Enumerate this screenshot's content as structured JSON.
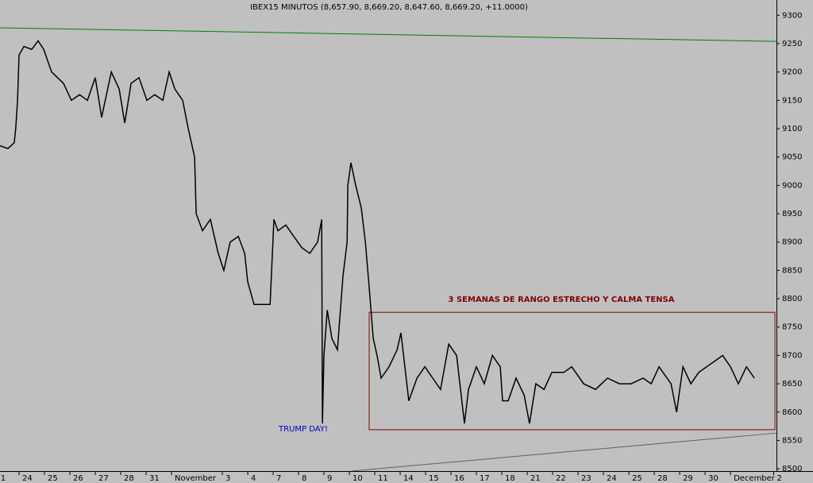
{
  "chart_data": {
    "type": "line",
    "title": "IBEX15 MINUTOS (8,657.90, 8,669.20, 8,647.60, 8,669.20, +11.0000)",
    "xlim": [
      -0.75,
      29.81
    ],
    "ylim": [
      8496,
      9327
    ],
    "xticks": [
      {
        "value": -0.85,
        "label": "1"
      },
      {
        "value": 0,
        "label": "24"
      },
      {
        "value": 1,
        "label": "25"
      },
      {
        "value": 2,
        "label": "26"
      },
      {
        "value": 3,
        "label": "27"
      },
      {
        "value": 4,
        "label": "28"
      },
      {
        "value": 5,
        "label": "31"
      },
      {
        "value": 6,
        "label": "November"
      },
      {
        "value": 8,
        "label": "3"
      },
      {
        "value": 9,
        "label": "4"
      },
      {
        "value": 10,
        "label": "7"
      },
      {
        "value": 11,
        "label": "8"
      },
      {
        "value": 12,
        "label": "9"
      },
      {
        "value": 13,
        "label": "10"
      },
      {
        "value": 14,
        "label": "11"
      },
      {
        "value": 15,
        "label": "14"
      },
      {
        "value": 16,
        "label": "15"
      },
      {
        "value": 17,
        "label": "16"
      },
      {
        "value": 18,
        "label": "17"
      },
      {
        "value": 19,
        "label": "18"
      },
      {
        "value": 20,
        "label": "21"
      },
      {
        "value": 21,
        "label": "22"
      },
      {
        "value": 22,
        "label": "23"
      },
      {
        "value": 23,
        "label": "24"
      },
      {
        "value": 24,
        "label": "25"
      },
      {
        "value": 25,
        "label": "28"
      },
      {
        "value": 26,
        "label": "29"
      },
      {
        "value": 27,
        "label": "30"
      },
      {
        "value": 28,
        "label": "December"
      },
      {
        "value": 29.7,
        "label": "2"
      }
    ],
    "yticks": [
      8500,
      8550,
      8600,
      8650,
      8700,
      8750,
      8800,
      8850,
      8900,
      8950,
      9000,
      9050,
      9100,
      9150,
      9200,
      9250,
      9300
    ],
    "series": [
      {
        "color": "#000000",
        "x": [
          -0.75,
          -0.44,
          -0.19,
          -0.13,
          -0.06,
          0,
          0.19,
          0.5,
          0.75,
          0.97,
          1.28,
          1.75,
          2.06,
          2.38,
          2.69,
          3,
          3.25,
          3.63,
          3.94,
          4.16,
          4.41,
          4.72,
          5.03,
          5.34,
          5.66,
          5.91,
          6.13,
          6.44,
          6.66,
          6.91,
          6.97,
          7.22,
          7.53,
          7.84,
          8.06,
          8.31,
          8.63,
          8.88,
          9,
          9.25,
          9.56,
          9.88,
          10.03,
          10.19,
          10.5,
          10.81,
          11.13,
          11.44,
          11.75,
          11.91,
          11.94,
          12,
          12.13,
          12.31,
          12.53,
          12.75,
          12.91,
          12.94,
          13.06,
          13.25,
          13.47,
          13.63,
          13.78,
          13.94,
          14.09,
          14.25,
          14.56,
          14.88,
          15.03,
          15.34,
          15.66,
          15.97,
          16.28,
          16.59,
          16.91,
          17.22,
          17.53,
          17.69,
          18,
          18.31,
          18.63,
          18.94,
          19.03,
          19.25,
          19.56,
          19.88,
          20.09,
          20.34,
          20.66,
          20.97,
          21.44,
          21.75,
          22.22,
          22.69,
          23.16,
          23.63,
          24.09,
          24.56,
          24.88,
          25.19,
          25.66,
          25.88,
          26.13,
          26.44,
          26.75,
          27.06,
          27.38,
          27.69,
          28,
          28.31,
          28.63,
          28.94
        ],
        "values": [
          9070,
          9065,
          9075,
          9100,
          9150,
          9230,
          9245,
          9240,
          9255,
          9240,
          9200,
          9180,
          9150,
          9160,
          9150,
          9190,
          9120,
          9200,
          9170,
          9110,
          9180,
          9190,
          9150,
          9160,
          9150,
          9200,
          9170,
          9150,
          9100,
          9050,
          8950,
          8920,
          8940,
          8880,
          8850,
          8900,
          8910,
          8880,
          8830,
          8790,
          8790,
          8790,
          8940,
          8920,
          8930,
          8910,
          8890,
          8880,
          8900,
          8940,
          8580,
          8700,
          8780,
          8730,
          8710,
          8840,
          8900,
          9000,
          9040,
          9000,
          8960,
          8900,
          8820,
          8730,
          8700,
          8660,
          8680,
          8710,
          8740,
          8620,
          8660,
          8680,
          8660,
          8640,
          8720,
          8700,
          8580,
          8640,
          8680,
          8650,
          8700,
          8680,
          8620,
          8620,
          8660,
          8630,
          8580,
          8650,
          8640,
          8670,
          8670,
          8680,
          8650,
          8640,
          8660,
          8650,
          8650,
          8660,
          8650,
          8680,
          8650,
          8600,
          8680,
          8650,
          8670,
          8680,
          8690,
          8700,
          8680,
          8650,
          8680,
          8660
        ]
      }
    ],
    "trendlines": [
      {
        "color": "#008000",
        "x": [
          -0.75,
          29.81
        ],
        "y": [
          9278,
          9254
        ]
      },
      {
        "color": "#606060",
        "x": [
          13.06,
          29.81
        ],
        "y": [
          8496,
          8563
        ]
      }
    ],
    "box": {
      "color": "#800000",
      "x": [
        13.78,
        29.75
      ],
      "y": [
        8569,
        8776
      ]
    },
    "annotations": [
      {
        "text": "3 SEMANAS DE RANGO ESTRECHO Y CALMA TENSA",
        "color": "#800000"
      },
      {
        "text": "TRUMP DAY!",
        "color": "#0000c0"
      }
    ]
  }
}
